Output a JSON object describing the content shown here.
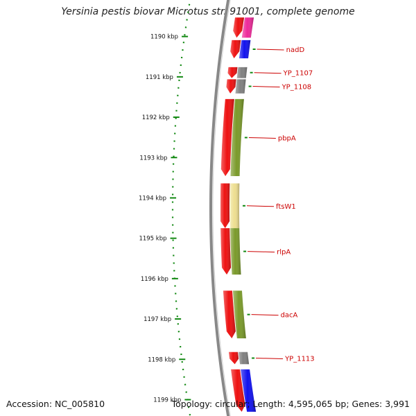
{
  "title": "Yersinia pestis biovar Microtus str. 91001, complete genome",
  "footer": {
    "accession": "Accession: NC_005810",
    "summary": "Topology: circular; Length: 4,595,065 bp; Genes: 3,991"
  },
  "colors": {
    "backbone": "#888888",
    "tick": "#118811",
    "leader": "#cc0000",
    "forward_gene": "#ee1111",
    "green_cog": "#7a9a2a",
    "blue_cog": "#1111ee",
    "gray_cog": "#808080",
    "yellow_cog": "#eedf90",
    "pink_cog": "#ee2a9a"
  },
  "ticks": [
    {
      "kbp": 1190,
      "label": "1190 kbp"
    },
    {
      "kbp": 1191,
      "label": "1191 kbp"
    },
    {
      "kbp": 1192,
      "label": "1192 kbp"
    },
    {
      "kbp": 1193,
      "label": "1193 kbp"
    },
    {
      "kbp": 1194,
      "label": "1194 kbp"
    },
    {
      "kbp": 1195,
      "label": "1195 kbp"
    },
    {
      "kbp": 1196,
      "label": "1196 kbp"
    },
    {
      "kbp": 1197,
      "label": "1197 kbp"
    },
    {
      "kbp": 1198,
      "label": "1198 kbp"
    },
    {
      "kbp": 1199,
      "label": "1199 kbp"
    }
  ],
  "genes": [
    {
      "start": 1189.53,
      "end": 1190.03,
      "cog": "pink_cog",
      "label": ""
    },
    {
      "start": 1190.09,
      "end": 1190.54,
      "cog": "blue_cog",
      "label": "nadD"
    },
    {
      "start": 1190.76,
      "end": 1191.03,
      "cog": "gray_cog",
      "label": "YP_1107"
    },
    {
      "start": 1191.06,
      "end": 1191.41,
      "cog": "gray_cog",
      "label": "YP_1108"
    },
    {
      "start": 1191.55,
      "end": 1193.46,
      "cog": "green_cog",
      "label": "pbpA"
    },
    {
      "start": 1193.64,
      "end": 1194.75,
      "cog": "yellow_cog",
      "label": "ftsW1"
    },
    {
      "start": 1194.75,
      "end": 1195.9,
      "cog": "green_cog",
      "label": "rlpA"
    },
    {
      "start": 1196.3,
      "end": 1197.48,
      "cog": "green_cog",
      "label": "dacA"
    },
    {
      "start": 1197.82,
      "end": 1198.12,
      "cog": "gray_cog",
      "label": "YP_1113"
    },
    {
      "start": 1198.25,
      "end": 1199.3,
      "cog": "blue_cog",
      "label": ""
    }
  ]
}
